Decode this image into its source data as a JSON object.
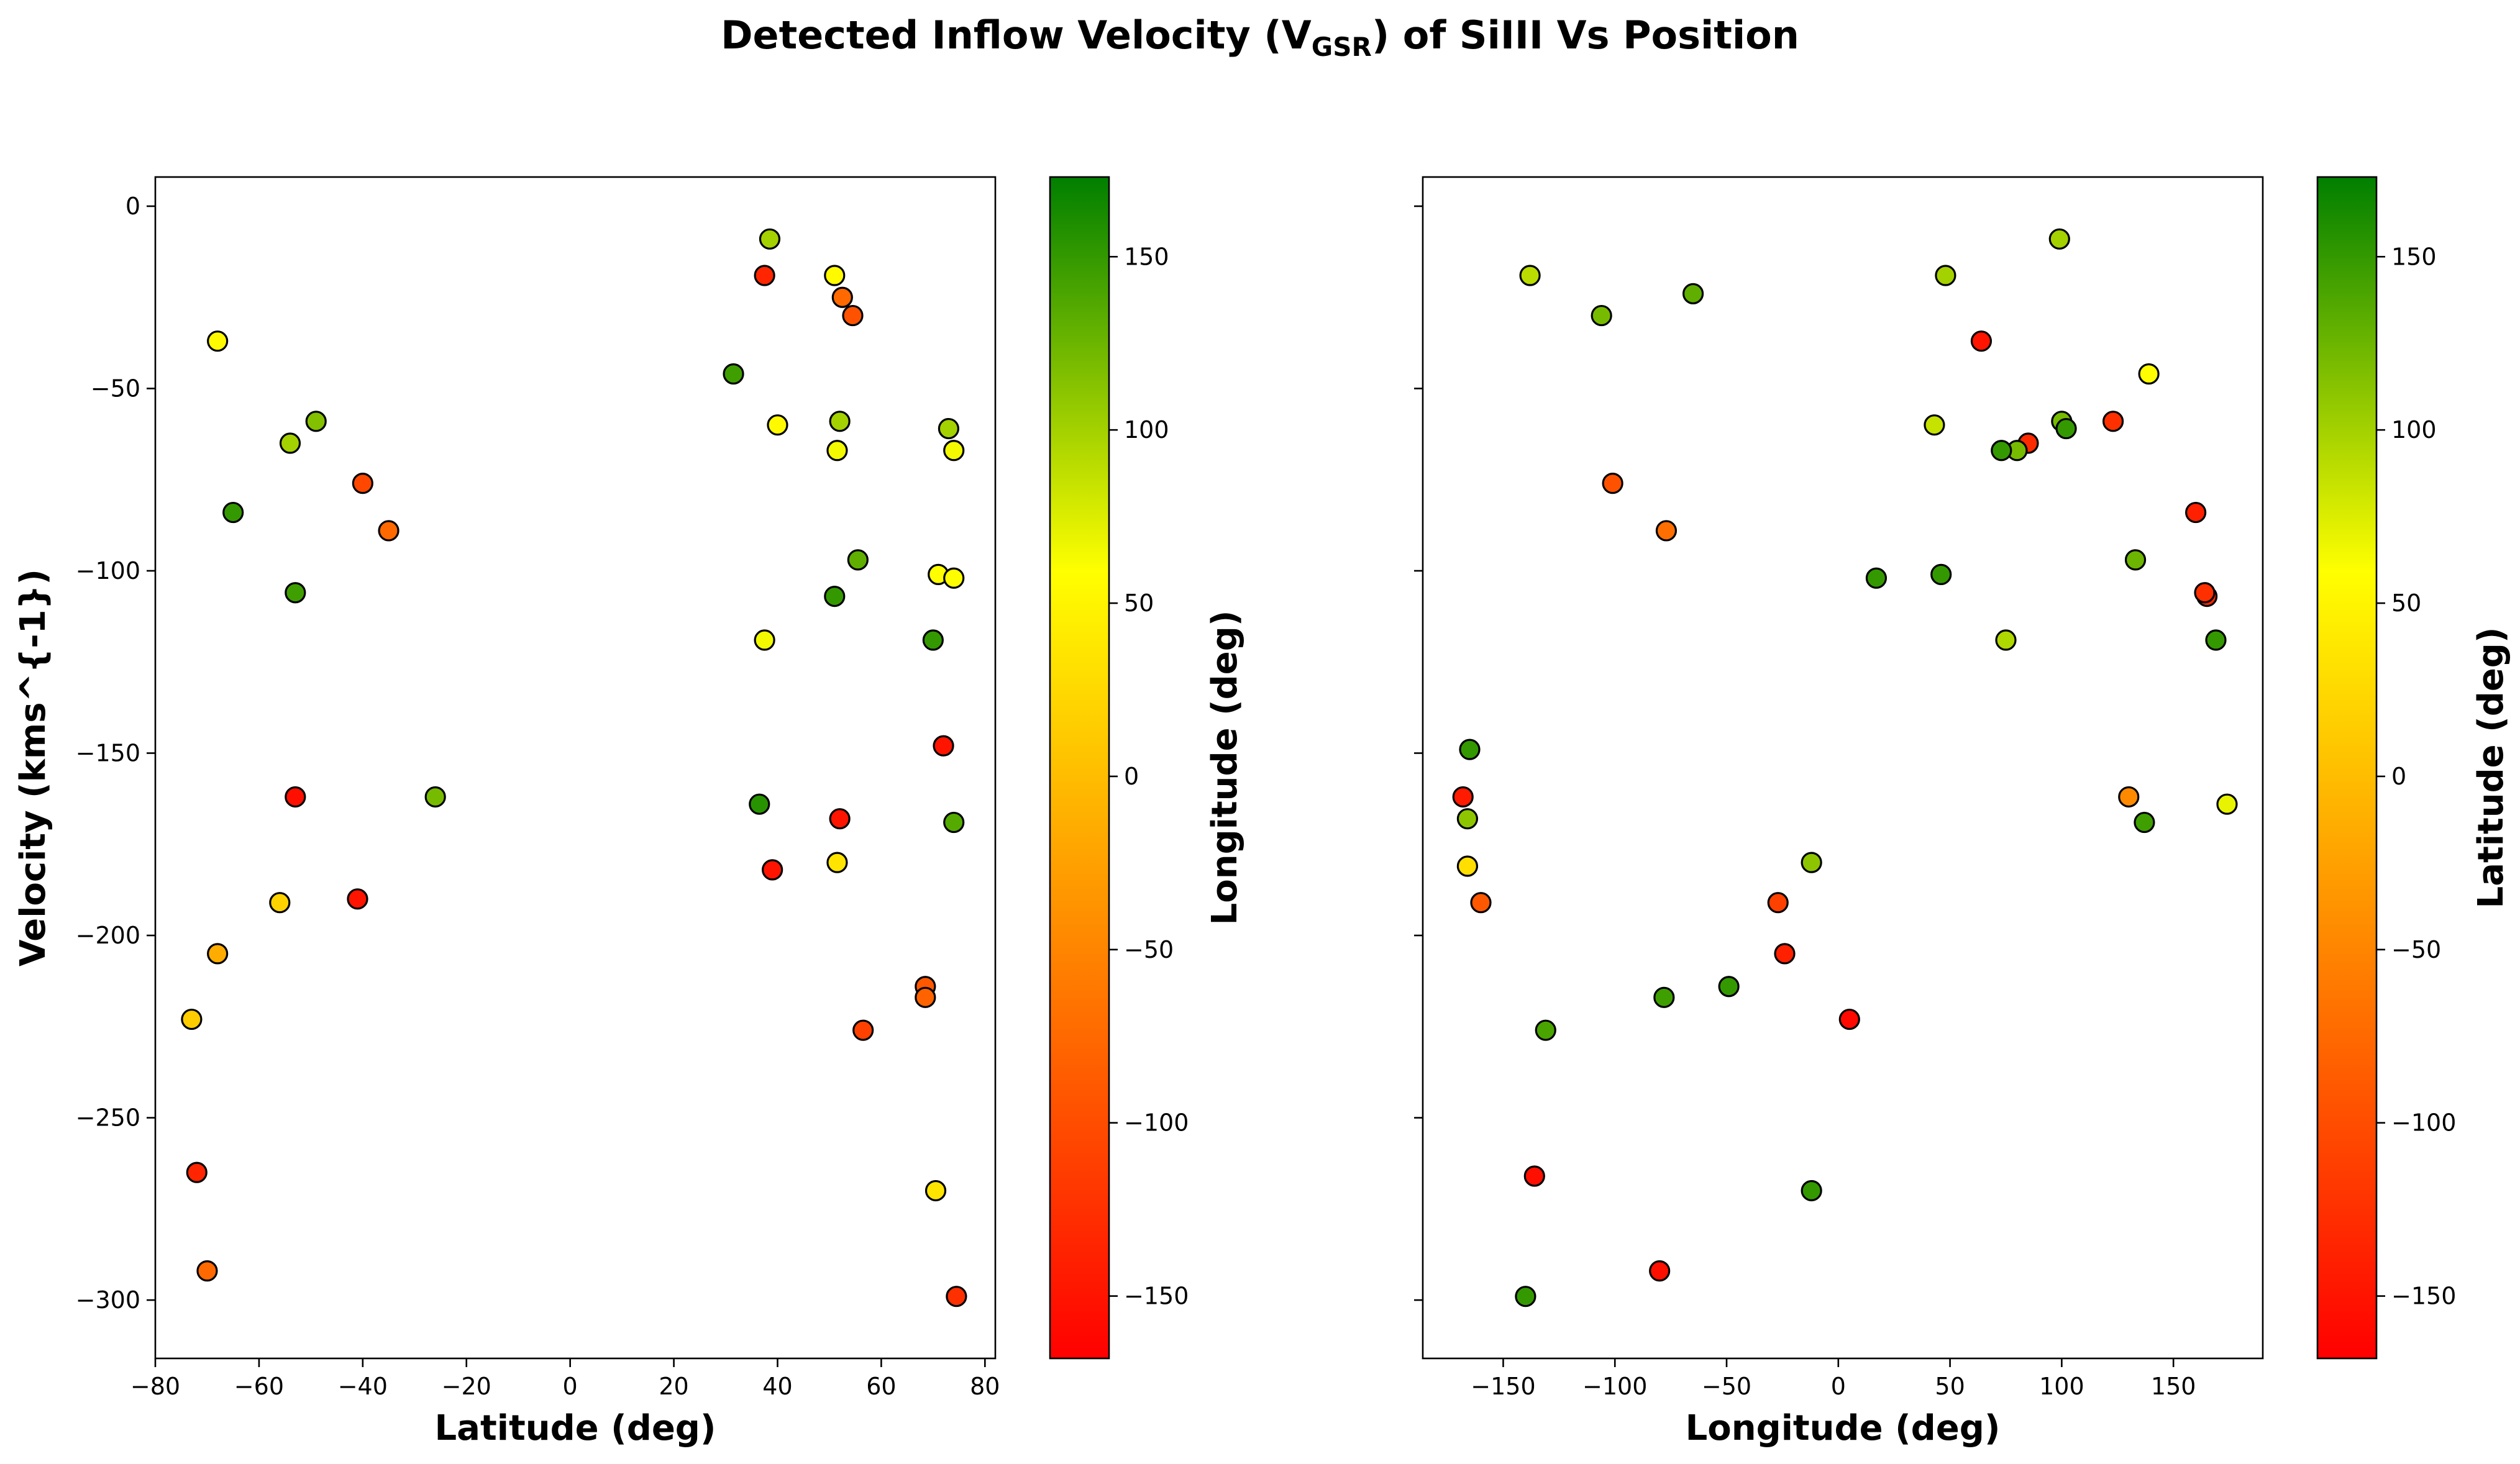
{
  "figure": {
    "title_main": "Detected Inflow Velocity (V",
    "title_sub": "GSR",
    "title_tail": ") of SiIII Vs Position"
  },
  "colormap": {
    "stops": [
      "#ff0000",
      "#ff8000",
      "#ffff00",
      "#007f00"
    ],
    "vmin": -168,
    "vmax": 173
  },
  "chart_data": [
    {
      "type": "scatter",
      "title": "",
      "xlabel": "Latitude (deg)",
      "ylabel": "Velocity (kms^{-1})",
      "xlim": [
        -80,
        82
      ],
      "ylim": [
        -316,
        8
      ],
      "xticks": [
        -80,
        -60,
        -40,
        -20,
        0,
        20,
        40,
        60,
        80
      ],
      "yticks": [
        0,
        -50,
        -100,
        -150,
        -200,
        -250,
        -300
      ],
      "colorbar_label": "Longitude (deg)",
      "colorbar_ticks": [
        150,
        100,
        50,
        0,
        -50,
        -100,
        -150
      ],
      "x": [
        -68,
        -54,
        -49,
        -65,
        -40,
        -35,
        -53,
        -26,
        -53,
        -56,
        -41,
        -68,
        -73,
        -72,
        -70,
        38.5,
        37.5,
        51,
        52.5,
        54.5,
        31.5,
        40,
        52,
        51.5,
        73,
        74,
        55.5,
        71,
        74,
        51,
        37.5,
        70,
        72,
        36.5,
        52,
        74,
        39,
        51.5,
        68.5,
        68.5,
        56.5,
        70.5,
        74.5
      ],
      "y": [
        -37,
        -65,
        -59,
        -84,
        -76,
        -89,
        -106,
        -162,
        -162,
        -191,
        -190,
        -205,
        -223,
        -265,
        -292,
        -9,
        -19,
        -19,
        -25,
        -30,
        -46,
        -60,
        -59,
        -67,
        -61,
        -67,
        -97,
        -101,
        -102,
        -107,
        -119,
        -119,
        -148,
        -164,
        -168,
        -169,
        -182,
        -180,
        -214,
        -217,
        -226,
        -270,
        -299
      ],
      "c": [
        55,
        100,
        115,
        150,
        -105,
        -75,
        145,
        120,
        -155,
        20,
        -150,
        -15,
        15,
        -135,
        -75,
        100,
        -135,
        55,
        -75,
        -95,
        145,
        55,
        100,
        65,
        100,
        65,
        130,
        60,
        60,
        150,
        65,
        150,
        -150,
        155,
        -150,
        135,
        -150,
        35,
        -90,
        -80,
        -110,
        35,
        -125
      ],
      "x_values_legend": "Latitude (deg)"
    },
    {
      "type": "scatter",
      "title": "",
      "xlabel": "Longitude (deg)",
      "ylabel": "",
      "xlim": [
        -186,
        190
      ],
      "ylim": [
        -316,
        8
      ],
      "xticks": [
        -150,
        -100,
        -50,
        0,
        50,
        100,
        150
      ],
      "yticks": [
        0,
        -50,
        -100,
        -150,
        -200,
        -250,
        -300
      ],
      "colorbar_label": "Latitude (deg)",
      "colorbar_ticks": [
        150,
        100,
        50,
        0,
        -50,
        -100,
        -150
      ],
      "x": [
        -138,
        -106,
        -65,
        48,
        99,
        64,
        139,
        43,
        100,
        102,
        85,
        80,
        73,
        123,
        -101,
        -77,
        160,
        165,
        164,
        17,
        46,
        133,
        169,
        75,
        -165,
        -168,
        -166,
        -166,
        -160,
        130,
        174,
        137,
        -12,
        -27,
        -24,
        5,
        -78,
        -49,
        -131,
        -136,
        -12,
        -80,
        -140
      ],
      "y": [
        -19,
        -30,
        -24,
        -19,
        -9,
        -37,
        -46,
        -60,
        -59,
        -61,
        -65,
        -67,
        -67,
        -59,
        -76,
        -89,
        -84,
        -107,
        -106,
        -102,
        -101,
        -97,
        -119,
        -119,
        -149,
        -162,
        -168,
        -181,
        -191,
        -162,
        -164,
        -169,
        -180,
        -191,
        -205,
        -223,
        -217,
        -214,
        -226,
        -266,
        -270,
        -292,
        -299
      ],
      "c": [
        90,
        120,
        130,
        100,
        100,
        -150,
        60,
        85,
        120,
        150,
        -130,
        120,
        150,
        -125,
        -95,
        -70,
        -140,
        -135,
        -125,
        150,
        150,
        125,
        150,
        95,
        150,
        -145,
        110,
        30,
        -90,
        -45,
        70,
        145,
        110,
        -110,
        -140,
        -160,
        145,
        150,
        140,
        -155,
        150,
        -155,
        150
      ]
    }
  ]
}
